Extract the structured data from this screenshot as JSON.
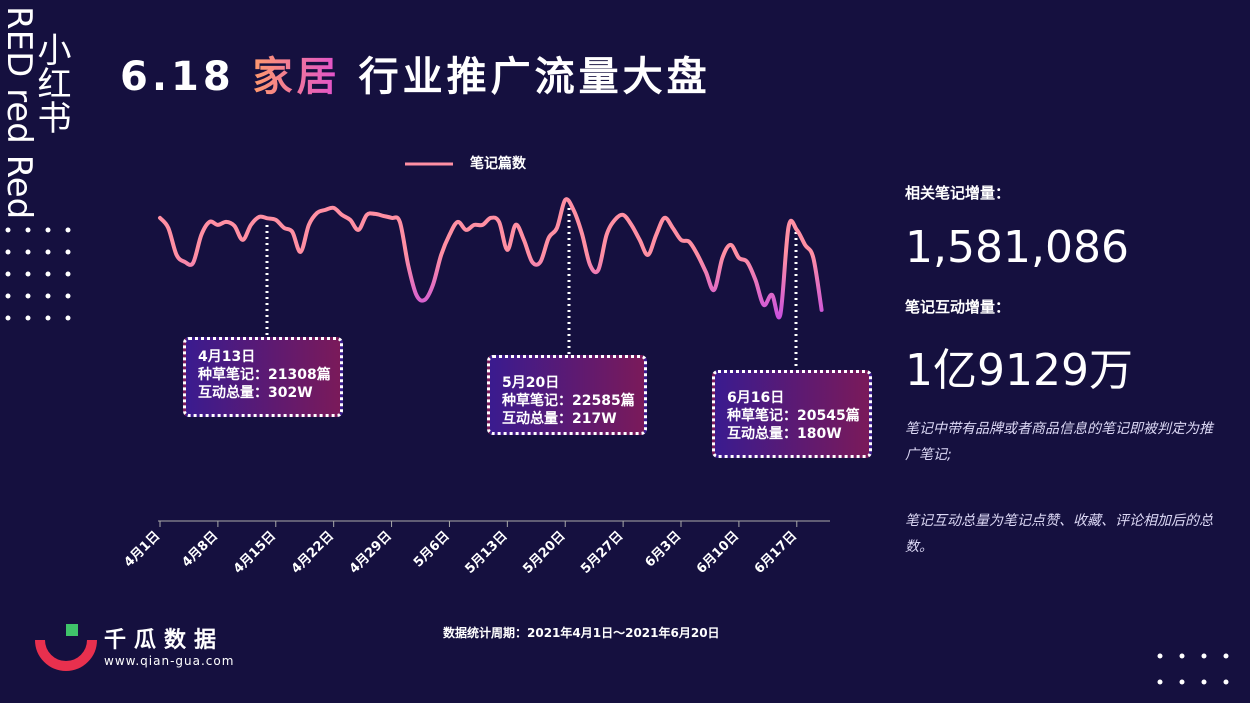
{
  "title_prefix": "6.18",
  "title_highlight": "家居",
  "title_suffix": "行业推广流量大盘",
  "side_cn": "小红书",
  "side_en": "RED red Red",
  "stats": [
    {
      "label": "相关笔记增量：",
      "value": "1,581,086"
    },
    {
      "label": "笔记互动增量：",
      "value": "1亿9129万"
    }
  ],
  "notes": [
    "笔记中带有品牌或者商品信息的笔记即被判定为推广笔记;",
    "笔记互动总量为笔记点赞、收藏、评论相加后的总数。"
  ],
  "footer": "数据统计周期：2021年4月1日～2021年6月20日",
  "logo": {
    "name": "千瓜数据",
    "url": "www.qian-gua.com"
  },
  "annotations": [
    {
      "date": "4月13日",
      "notes": "种草笔记：21308篇",
      "interactions": "互动总量：302W"
    },
    {
      "date": "5月20日",
      "notes": "种草笔记：22585篇",
      "interactions": "互动总量：217W"
    },
    {
      "date": "6月16日",
      "notes": "种草笔记：20545篇",
      "interactions": "互动总量：180W"
    }
  ],
  "chart_data": {
    "type": "line",
    "categories": [
      "4月1日",
      null,
      null,
      null,
      null,
      null,
      null,
      "4月8日",
      null,
      null,
      null,
      null,
      null,
      null,
      "4月15日",
      null,
      null,
      null,
      null,
      null,
      null,
      "4月22日",
      null,
      null,
      null,
      null,
      null,
      null,
      "4月29日",
      null,
      null,
      null,
      null,
      null,
      null,
      "5月6日",
      null,
      null,
      null,
      null,
      null,
      null,
      "5月13日",
      null,
      null,
      null,
      null,
      null,
      null,
      "5月20日",
      null,
      null,
      null,
      null,
      null,
      null,
      "5月27日",
      null,
      null,
      null,
      null,
      null,
      null,
      "6月3日",
      null,
      null,
      null,
      null,
      null,
      null,
      "6月10日",
      null,
      null,
      null,
      null,
      null,
      null,
      "6月17日",
      null,
      null,
      null
    ],
    "series": [
      {
        "name": "笔记篇数",
        "color": "#ff8fa3",
        "values": [
          21233,
          20483,
          18458,
          17933,
          17858,
          19958,
          20933,
          20708,
          20933,
          20633,
          19583,
          20708,
          21308,
          21200,
          21083,
          20483,
          20183,
          18683,
          20708,
          21608,
          21833,
          21983,
          21458,
          21083,
          20333,
          21458,
          21533,
          21383,
          21233,
          20933,
          17708,
          15458,
          15083,
          16208,
          18458,
          19958,
          20933,
          20333,
          20708,
          20708,
          21233,
          20933,
          18833,
          20708,
          19583,
          17933,
          17933,
          19733,
          20483,
          22585,
          21833,
          20108,
          17708,
          17333,
          19958,
          21083,
          21458,
          20708,
          19583,
          18458,
          19958,
          21233,
          20483,
          19583,
          19433,
          18458,
          17183,
          15833,
          18233,
          19208,
          18233,
          17933,
          16583,
          14708,
          15458,
          13958,
          20545,
          20333,
          19208,
          18233,
          14333
        ]
      }
    ],
    "ylim": [
      12000,
      24000
    ]
  }
}
